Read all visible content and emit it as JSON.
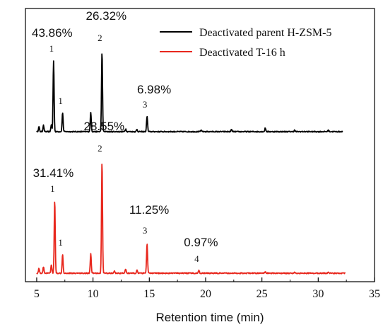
{
  "chart_data": {
    "type": "line",
    "xlabel": "Retention time (min)",
    "ylabel": "",
    "xlim": [
      4,
      35
    ],
    "x_ticks": [
      "5",
      "10",
      "15",
      "20",
      "25",
      "30",
      "35"
    ],
    "grid": false,
    "legend_position": "top-right",
    "series": [
      {
        "name": "Deactivated parent H-ZSM-5",
        "color": "#000000",
        "peaks": [
          {
            "x": 5.2,
            "h": 7
          },
          {
            "x": 5.6,
            "h": 9
          },
          {
            "x": 6.3,
            "h": 10
          },
          {
            "x": 6.5,
            "h": 100
          },
          {
            "x": 7.3,
            "h": 27
          },
          {
            "x": 9.8,
            "h": 27
          },
          {
            "x": 10.8,
            "h": 112
          },
          {
            "x": 12.9,
            "h": 4
          },
          {
            "x": 13.9,
            "h": 3
          },
          {
            "x": 14.8,
            "h": 22
          },
          {
            "x": 19.6,
            "h": 2
          },
          {
            "x": 22.3,
            "h": 3
          },
          {
            "x": 25.3,
            "h": 5
          },
          {
            "x": 27.9,
            "h": 2
          },
          {
            "x": 30.9,
            "h": 2
          }
        ],
        "annotations": [
          {
            "peak": "1",
            "x": 6.5,
            "percent": "43.86%"
          },
          {
            "peak": "1",
            "x": 7.3,
            "percent": ""
          },
          {
            "peak": "2",
            "x": 10.8,
            "percent": "26.32%"
          },
          {
            "peak": "3",
            "x": 14.8,
            "percent": "6.98%"
          }
        ]
      },
      {
        "name": "Deactivated T-16 h",
        "color": "#e8281e",
        "peaks": [
          {
            "x": 5.2,
            "h": 7
          },
          {
            "x": 5.6,
            "h": 9
          },
          {
            "x": 6.3,
            "h": 12
          },
          {
            "x": 6.6,
            "h": 103
          },
          {
            "x": 7.3,
            "h": 27
          },
          {
            "x": 9.8,
            "h": 27
          },
          {
            "x": 10.8,
            "h": 158
          },
          {
            "x": 11.9,
            "h": 3
          },
          {
            "x": 12.9,
            "h": 6
          },
          {
            "x": 13.9,
            "h": 4
          },
          {
            "x": 14.8,
            "h": 42
          },
          {
            "x": 19.4,
            "h": 4
          },
          {
            "x": 25.3,
            "h": 2
          },
          {
            "x": 27.9,
            "h": 1
          },
          {
            "x": 30.9,
            "h": 2
          }
        ],
        "annotations": [
          {
            "peak": "1",
            "x": 6.6,
            "percent": "31.41%"
          },
          {
            "peak": "1",
            "x": 7.3,
            "percent": ""
          },
          {
            "peak": "2",
            "x": 10.8,
            "percent": "28.55%"
          },
          {
            "peak": "3",
            "x": 14.8,
            "percent": "11.25%"
          },
          {
            "peak": "4",
            "x": 19.4,
            "percent": "0.97%"
          }
        ]
      }
    ]
  }
}
